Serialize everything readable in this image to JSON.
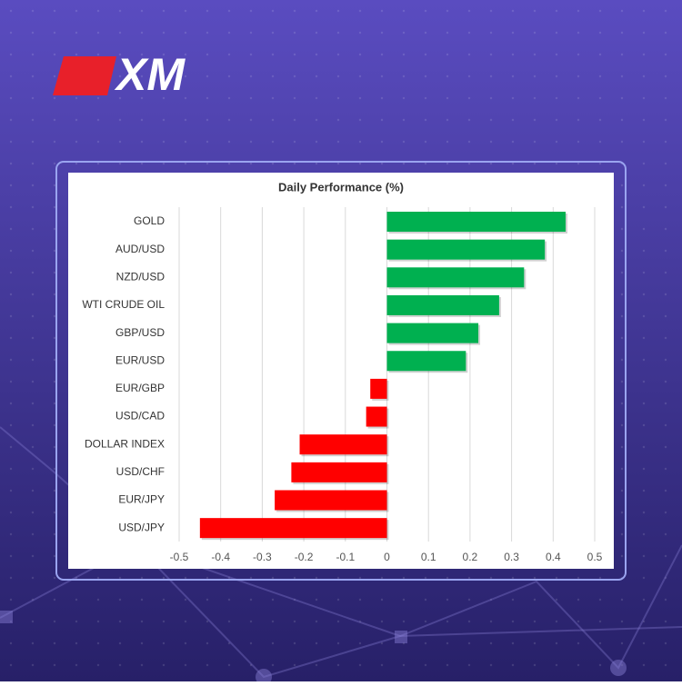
{
  "logo": "XM",
  "chart_data": {
    "type": "bar",
    "orientation": "horizontal",
    "title": "Daily Performance (%)",
    "categories": [
      "GOLD",
      "AUD/USD",
      "NZD/USD",
      "WTI CRUDE OIL",
      "GBP/USD",
      "EUR/USD",
      "EUR/GBP",
      "USD/CAD",
      "DOLLAR INDEX",
      "USD/CHF",
      "EUR/JPY",
      "USD/JPY"
    ],
    "values": [
      0.43,
      0.38,
      0.33,
      0.27,
      0.22,
      0.19,
      -0.04,
      -0.05,
      -0.21,
      -0.23,
      -0.27,
      -0.45
    ],
    "colors": [
      "#00b050",
      "#00b050",
      "#00b050",
      "#00b050",
      "#00b050",
      "#00b050",
      "#ff0000",
      "#ff0000",
      "#ff0000",
      "#ff0000",
      "#ff0000",
      "#ff0000"
    ],
    "xlim": [
      -0.5,
      0.5
    ],
    "xticks": [
      -0.5,
      -0.4,
      -0.3,
      -0.2,
      -0.1,
      0,
      0.1,
      0.2,
      0.3,
      0.4,
      0.5
    ],
    "grid": true
  }
}
